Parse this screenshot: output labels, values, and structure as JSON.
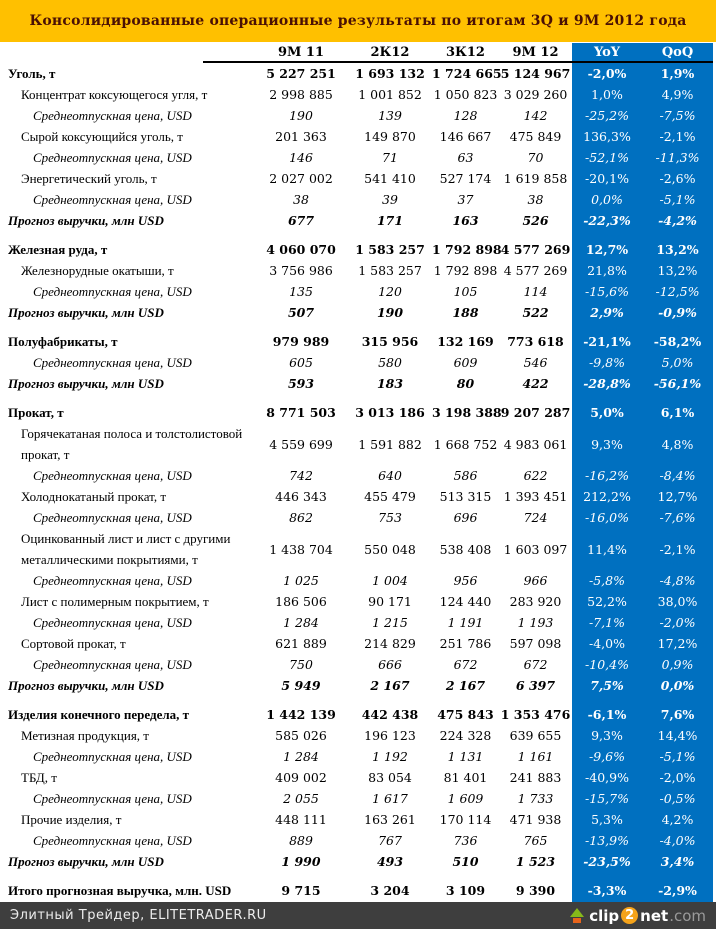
{
  "title": "Консолидированные операционные результаты по итогам 3Q и 9М 2012 года",
  "colors": {
    "title_band": "#FFC000",
    "title_text": "#4A1004",
    "highlight_column": "#0070C0",
    "highlight_text": "#FFFFFF",
    "footer_bg": "#3E3E3E",
    "body_text": "#000000"
  },
  "table": {
    "columns": [
      "9М 11",
      "2К12",
      "3К12",
      "9М 12",
      "YoY",
      "QoQ"
    ],
    "rows": [
      {
        "style": "section",
        "indent": 0,
        "label": "Уголь, т",
        "values": [
          "5 227 251",
          "1 693 132",
          "1 724 665",
          "5 124 967"
        ],
        "yoy": "-2,0%",
        "qoq": "1,9%"
      },
      {
        "style": "item",
        "indent": 1,
        "label": "Концентрат коксующегося угля, т",
        "values": [
          "2 998 885",
          "1 001 852",
          "1 050 823",
          "3 029 260"
        ],
        "yoy": "1,0%",
        "qoq": "4,9%"
      },
      {
        "style": "price",
        "indent": 2,
        "label": "Среднеотпускная цена, USD",
        "values": [
          "190",
          "139",
          "128",
          "142"
        ],
        "yoy": "-25,2%",
        "qoq": "-7,5%"
      },
      {
        "style": "item",
        "indent": 1,
        "label": "Сырой коксующийся уголь, т",
        "values": [
          "201 363",
          "149 870",
          "146 667",
          "475 849"
        ],
        "yoy": "136,3%",
        "qoq": "-2,1%"
      },
      {
        "style": "price",
        "indent": 2,
        "label": "Среднеотпускная цена, USD",
        "values": [
          "146",
          "71",
          "63",
          "70"
        ],
        "yoy": "-52,1%",
        "qoq": "-11,3%"
      },
      {
        "style": "item",
        "indent": 1,
        "label": "Энергетический уголь, т",
        "values": [
          "2 027 002",
          "541 410",
          "527 174",
          "1 619 858"
        ],
        "yoy": "-20,1%",
        "qoq": "-2,6%"
      },
      {
        "style": "price",
        "indent": 2,
        "label": "Среднеотпускная цена, USD",
        "values": [
          "38",
          "39",
          "37",
          "38"
        ],
        "yoy": "0,0%",
        "qoq": "-5,1%"
      },
      {
        "style": "forecast",
        "indent": 0,
        "label": "Прогноз выручки, млн USD",
        "values": [
          "677",
          "171",
          "163",
          "526"
        ],
        "yoy": "-22,3%",
        "qoq": "-4,2%"
      },
      {
        "spacer": true
      },
      {
        "style": "section",
        "indent": 0,
        "label": "Железная руда, т",
        "values": [
          "4 060 070",
          "1 583 257",
          "1 792 898",
          "4 577 269"
        ],
        "yoy": "12,7%",
        "qoq": "13,2%"
      },
      {
        "style": "item",
        "indent": 1,
        "label": "Железнорудные окатыши, т",
        "values": [
          "3 756 986",
          "1 583 257",
          "1 792 898",
          "4 577 269"
        ],
        "yoy": "21,8%",
        "qoq": "13,2%"
      },
      {
        "style": "price",
        "indent": 2,
        "label": "Среднеотпускная цена, USD",
        "values": [
          "135",
          "120",
          "105",
          "114"
        ],
        "yoy": "-15,6%",
        "qoq": "-12,5%"
      },
      {
        "style": "forecast",
        "indent": 0,
        "label": "Прогноз выручки, млн USD",
        "values": [
          "507",
          "190",
          "188",
          "522"
        ],
        "yoy": "2,9%",
        "qoq": "-0,9%"
      },
      {
        "spacer": true
      },
      {
        "style": "section",
        "indent": 0,
        "label": "Полуфабрикаты, т",
        "values": [
          "979 989",
          "315 956",
          "132 169",
          "773 618"
        ],
        "yoy": "-21,1%",
        "qoq": "-58,2%"
      },
      {
        "style": "price",
        "indent": 2,
        "label": "Среднеотпускная цена, USD",
        "values": [
          "605",
          "580",
          "609",
          "546"
        ],
        "yoy": "-9,8%",
        "qoq": "5,0%"
      },
      {
        "style": "forecast",
        "indent": 0,
        "label": "Прогноз выручки, млн USD",
        "values": [
          "593",
          "183",
          "80",
          "422"
        ],
        "yoy": "-28,8%",
        "qoq": "-56,1%"
      },
      {
        "spacer": true
      },
      {
        "style": "section",
        "indent": 0,
        "label": "Прокат, т",
        "values": [
          "8 771 503",
          "3 013 186",
          "3 198 388",
          "9 207 287"
        ],
        "yoy": "5,0%",
        "qoq": "6,1%"
      },
      {
        "style": "item",
        "indent": 1,
        "label": "Горячекатаная полоса и толстолистовой прокат, т",
        "values": [
          "4 559 699",
          "1 591 882",
          "1 668 752",
          "4 983 061"
        ],
        "yoy": "9,3%",
        "qoq": "4,8%"
      },
      {
        "style": "price",
        "indent": 2,
        "label": "Среднеотпускная цена, USD",
        "values": [
          "742",
          "640",
          "586",
          "622"
        ],
        "yoy": "-16,2%",
        "qoq": "-8,4%"
      },
      {
        "style": "item",
        "indent": 1,
        "label": "Холоднокатаный прокат, т",
        "values": [
          "446 343",
          "455 479",
          "513 315",
          "1 393 451"
        ],
        "yoy": "212,2%",
        "qoq": "12,7%"
      },
      {
        "style": "price",
        "indent": 2,
        "label": "Среднеотпускная цена, USD",
        "values": [
          "862",
          "753",
          "696",
          "724"
        ],
        "yoy": "-16,0%",
        "qoq": "-7,6%"
      },
      {
        "style": "item",
        "indent": 1,
        "label": "Оцинкованный лист и лист с другими металлическими покрытиями, т",
        "values": [
          "1 438 704",
          "550 048",
          "538 408",
          "1 603 097"
        ],
        "yoy": "11,4%",
        "qoq": "-2,1%"
      },
      {
        "style": "price",
        "indent": 2,
        "label": "Среднеотпускная цена, USD",
        "values": [
          "1 025",
          "1 004",
          "956",
          "966"
        ],
        "yoy": "-5,8%",
        "qoq": "-4,8%"
      },
      {
        "style": "item",
        "indent": 1,
        "label": "Лист с полимерным покрытием, т",
        "values": [
          "186 506",
          "90 171",
          "124 440",
          "283 920"
        ],
        "yoy": "52,2%",
        "qoq": "38,0%"
      },
      {
        "style": "price",
        "indent": 2,
        "label": "Среднеотпускная цена, USD",
        "values": [
          "1 284",
          "1 215",
          "1 191",
          "1 193"
        ],
        "yoy": "-7,1%",
        "qoq": "-2,0%"
      },
      {
        "style": "item",
        "indent": 1,
        "label": "Сортовой прокат, т",
        "values": [
          "621 889",
          "214 829",
          "251 786",
          "597 098"
        ],
        "yoy": "-4,0%",
        "qoq": "17,2%"
      },
      {
        "style": "price",
        "indent": 2,
        "label": "Среднеотпускная цена, USD",
        "values": [
          "750",
          "666",
          "672",
          "672"
        ],
        "yoy": "-10,4%",
        "qoq": "0,9%"
      },
      {
        "style": "forecast",
        "indent": 0,
        "label": "Прогноз выручки, млн USD",
        "values": [
          "5 949",
          "2 167",
          "2 167",
          "6 397"
        ],
        "yoy": "7,5%",
        "qoq": "0,0%"
      },
      {
        "spacer": true
      },
      {
        "style": "section",
        "indent": 0,
        "label": "Изделия конечного передела, т",
        "values": [
          "1 442 139",
          "442 438",
          "475 843",
          "1 353 476"
        ],
        "yoy": "-6,1%",
        "qoq": "7,6%"
      },
      {
        "style": "item",
        "indent": 1,
        "label": "Метизная продукция, т",
        "values": [
          "585 026",
          "196 123",
          "224 328",
          "639 655"
        ],
        "yoy": "9,3%",
        "qoq": "14,4%"
      },
      {
        "style": "price",
        "indent": 2,
        "label": "Среднеотпускная цена, USD",
        "values": [
          "1 284",
          "1 192",
          "1 131",
          "1 161"
        ],
        "yoy": "-9,6%",
        "qoq": "-5,1%"
      },
      {
        "style": "item",
        "indent": 1,
        "label": "ТБД, т",
        "values": [
          "409 002",
          "83 054",
          "81 401",
          "241 883"
        ],
        "yoy": "-40,9%",
        "qoq": "-2,0%"
      },
      {
        "style": "price",
        "indent": 2,
        "label": "Среднеотпускная цена, USD",
        "values": [
          "2 055",
          "1 617",
          "1 609",
          "1 733"
        ],
        "yoy": "-15,7%",
        "qoq": "-0,5%"
      },
      {
        "style": "item",
        "indent": 1,
        "label": "Прочие изделия, т",
        "values": [
          "448 111",
          "163 261",
          "170 114",
          "471 938"
        ],
        "yoy": "5,3%",
        "qoq": "4,2%"
      },
      {
        "style": "price",
        "indent": 2,
        "label": "Среднеотпускная цена, USD",
        "values": [
          "889",
          "767",
          "736",
          "765"
        ],
        "yoy": "-13,9%",
        "qoq": "-4,0%"
      },
      {
        "style": "forecast",
        "indent": 0,
        "label": "Прогноз выручки, млн USD",
        "values": [
          "1 990",
          "493",
          "510",
          "1 523"
        ],
        "yoy": "-23,5%",
        "qoq": "3,4%"
      },
      {
        "spacer": true
      },
      {
        "style": "total",
        "indent": 0,
        "label": "Итого прогнозная выручка, млн. USD",
        "values": [
          "9 715",
          "3 204",
          "3 109",
          "9 390"
        ],
        "yoy": "-3,3%",
        "qoq": "-2,9%"
      }
    ]
  },
  "footer": {
    "credit": "Элитный Трейдер, ELITETRADER.RU",
    "logo": {
      "clip": "clip",
      "two": "2",
      "net": "net",
      "com": ".com"
    }
  }
}
